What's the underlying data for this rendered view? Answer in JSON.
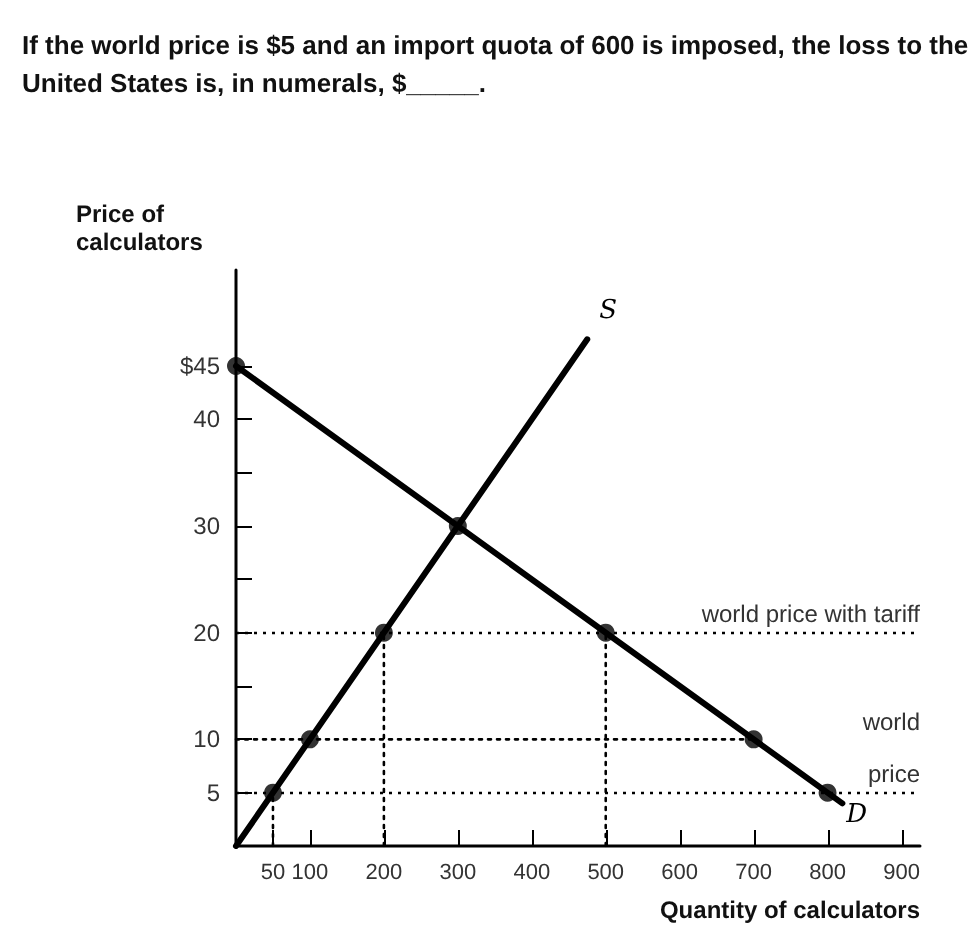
{
  "chart_data": {
    "type": "line",
    "title": "If the world price is $5 and an import quota of 600 is imposed, the loss to the United States is, in numerals, $_____.",
    "xlabel": "Quantity of calculators",
    "ylabel": "Price of calculators",
    "xlim": [
      0,
      925
    ],
    "ylim": [
      0,
      54
    ],
    "xticks": [
      50,
      100,
      200,
      300,
      400,
      500,
      600,
      700,
      800,
      900
    ],
    "yticks": [
      5,
      10,
      {
        "value": 15,
        "label": null
      },
      20,
      {
        "value": 25,
        "label": null
      },
      30,
      {
        "value": 35,
        "label": null
      },
      40,
      {
        "value": 45,
        "label": "$45"
      }
    ],
    "grid": false,
    "legend": false,
    "marker": "none",
    "line_style": "solid",
    "series": [
      {
        "name": "S",
        "color": "#000000",
        "x": [
          0,
          475
        ],
        "values": [
          0,
          47.5
        ]
      },
      {
        "name": "D",
        "color": "#000000",
        "x": [
          0,
          820
        ],
        "values": [
          45,
          4
        ]
      },
      {
        "type": "line",
        "color": "#000000",
        "line_style": "dotted",
        "x": [
          0,
          700
        ],
        "values": [
          10,
          10
        ]
      },
      {
        "type": "line",
        "color": "#000000",
        "line_style": "dotted",
        "x": [
          50,
          50
        ],
        "values": [
          0,
          5
        ]
      },
      {
        "type": "line",
        "color": "#000000",
        "line_style": "dotted",
        "x": [
          200,
          200
        ],
        "values": [
          0,
          20
        ]
      },
      {
        "type": "line",
        "color": "#000000",
        "line_style": "dotted",
        "x": [
          500,
          500
        ],
        "values": [
          0,
          20
        ]
      },
      {
        "type": "scatter",
        "color": "#000000",
        "marker": "circle",
        "x": [
          0,
          50,
          100,
          200,
          300,
          500,
          700,
          800
        ],
        "values": [
          45,
          5,
          10,
          20,
          30,
          20,
          10,
          5
        ]
      }
    ],
    "ref_lines": [
      {
        "axis": "y",
        "value": 20,
        "label": "world price with tariff",
        "color": "#000000",
        "line_style": "dotted"
      },
      {
        "axis": "y",
        "value": 5,
        "label": "world price",
        "color": "#000000",
        "line_style": "dotted"
      }
    ]
  }
}
